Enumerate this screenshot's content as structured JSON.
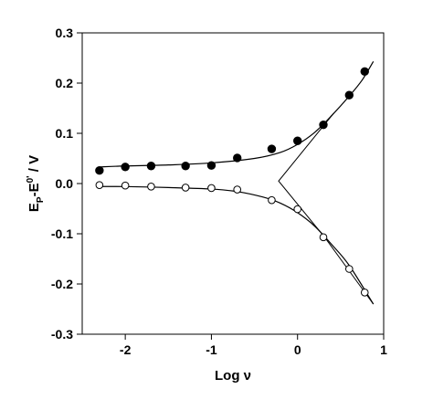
{
  "chart_data": {
    "type": "scatter",
    "title": "",
    "xlabel": "Log ν",
    "ylabel": {
      "prefix": "E",
      "prefix_sub": "P",
      "middle": "-E",
      "middle_sup": "0'",
      "suffix": " / V"
    },
    "xlim": [
      -2.5,
      1.0
    ],
    "ylim": [
      -0.3,
      0.3
    ],
    "xticks": [
      -2,
      -1,
      0,
      1
    ],
    "xtick_labels": [
      "-2",
      "-1",
      "0",
      "1"
    ],
    "yticks": [
      -0.3,
      -0.2,
      -0.1,
      0.0,
      0.1,
      0.2,
      0.3
    ],
    "ytick_labels": [
      "-0.3",
      "-0.2",
      "-0.1",
      "0.0",
      "0.1",
      "0.2",
      "0.3"
    ],
    "grid": false,
    "legend": null,
    "series": [
      {
        "marker": "filled-circle",
        "color": "#000000",
        "x": [
          -2.3,
          -2.0,
          -1.7,
          -1.3,
          -1.0,
          -0.7,
          -0.3,
          0.0,
          0.3,
          0.6,
          0.78
        ],
        "y": [
          0.026,
          0.033,
          0.035,
          0.035,
          0.036,
          0.051,
          0.069,
          0.085,
          0.117,
          0.176,
          0.223
        ]
      },
      {
        "marker": "open-circle",
        "color": "#000000",
        "x": [
          -2.3,
          -2.0,
          -1.7,
          -1.3,
          -1.0,
          -0.7,
          -0.3,
          0.0,
          0.3,
          0.6,
          0.78
        ],
        "y": [
          -0.003,
          -0.004,
          -0.006,
          -0.008,
          -0.009,
          -0.012,
          -0.033,
          -0.051,
          -0.107,
          -0.17,
          -0.217
        ]
      },
      {
        "marker": "none",
        "line": "smooth",
        "color": "#000000",
        "x": [
          -2.3,
          -2.0,
          -1.5,
          -1.0,
          -0.5,
          -0.2,
          0.0,
          0.2,
          0.4,
          0.6,
          0.75,
          0.88
        ],
        "y": [
          0.033,
          0.035,
          0.037,
          0.041,
          0.05,
          0.062,
          0.078,
          0.102,
          0.136,
          0.174,
          0.206,
          0.243
        ]
      },
      {
        "marker": "none",
        "line": "smooth",
        "color": "#000000",
        "x": [
          -2.3,
          -2.0,
          -1.5,
          -1.0,
          -0.7,
          -0.4,
          -0.2,
          0.0,
          0.2,
          0.4,
          0.6,
          0.88
        ],
        "y": [
          -0.006,
          -0.006,
          -0.008,
          -0.011,
          -0.016,
          -0.027,
          -0.039,
          -0.058,
          -0.085,
          -0.122,
          -0.163,
          -0.24
        ]
      },
      {
        "marker": "none",
        "line": "straight",
        "color": "#000000",
        "x": [
          0.42,
          -0.22,
          0.32,
          0.88
        ],
        "y": [
          0.14,
          0.005,
          -0.108,
          -0.24
        ]
      }
    ]
  }
}
